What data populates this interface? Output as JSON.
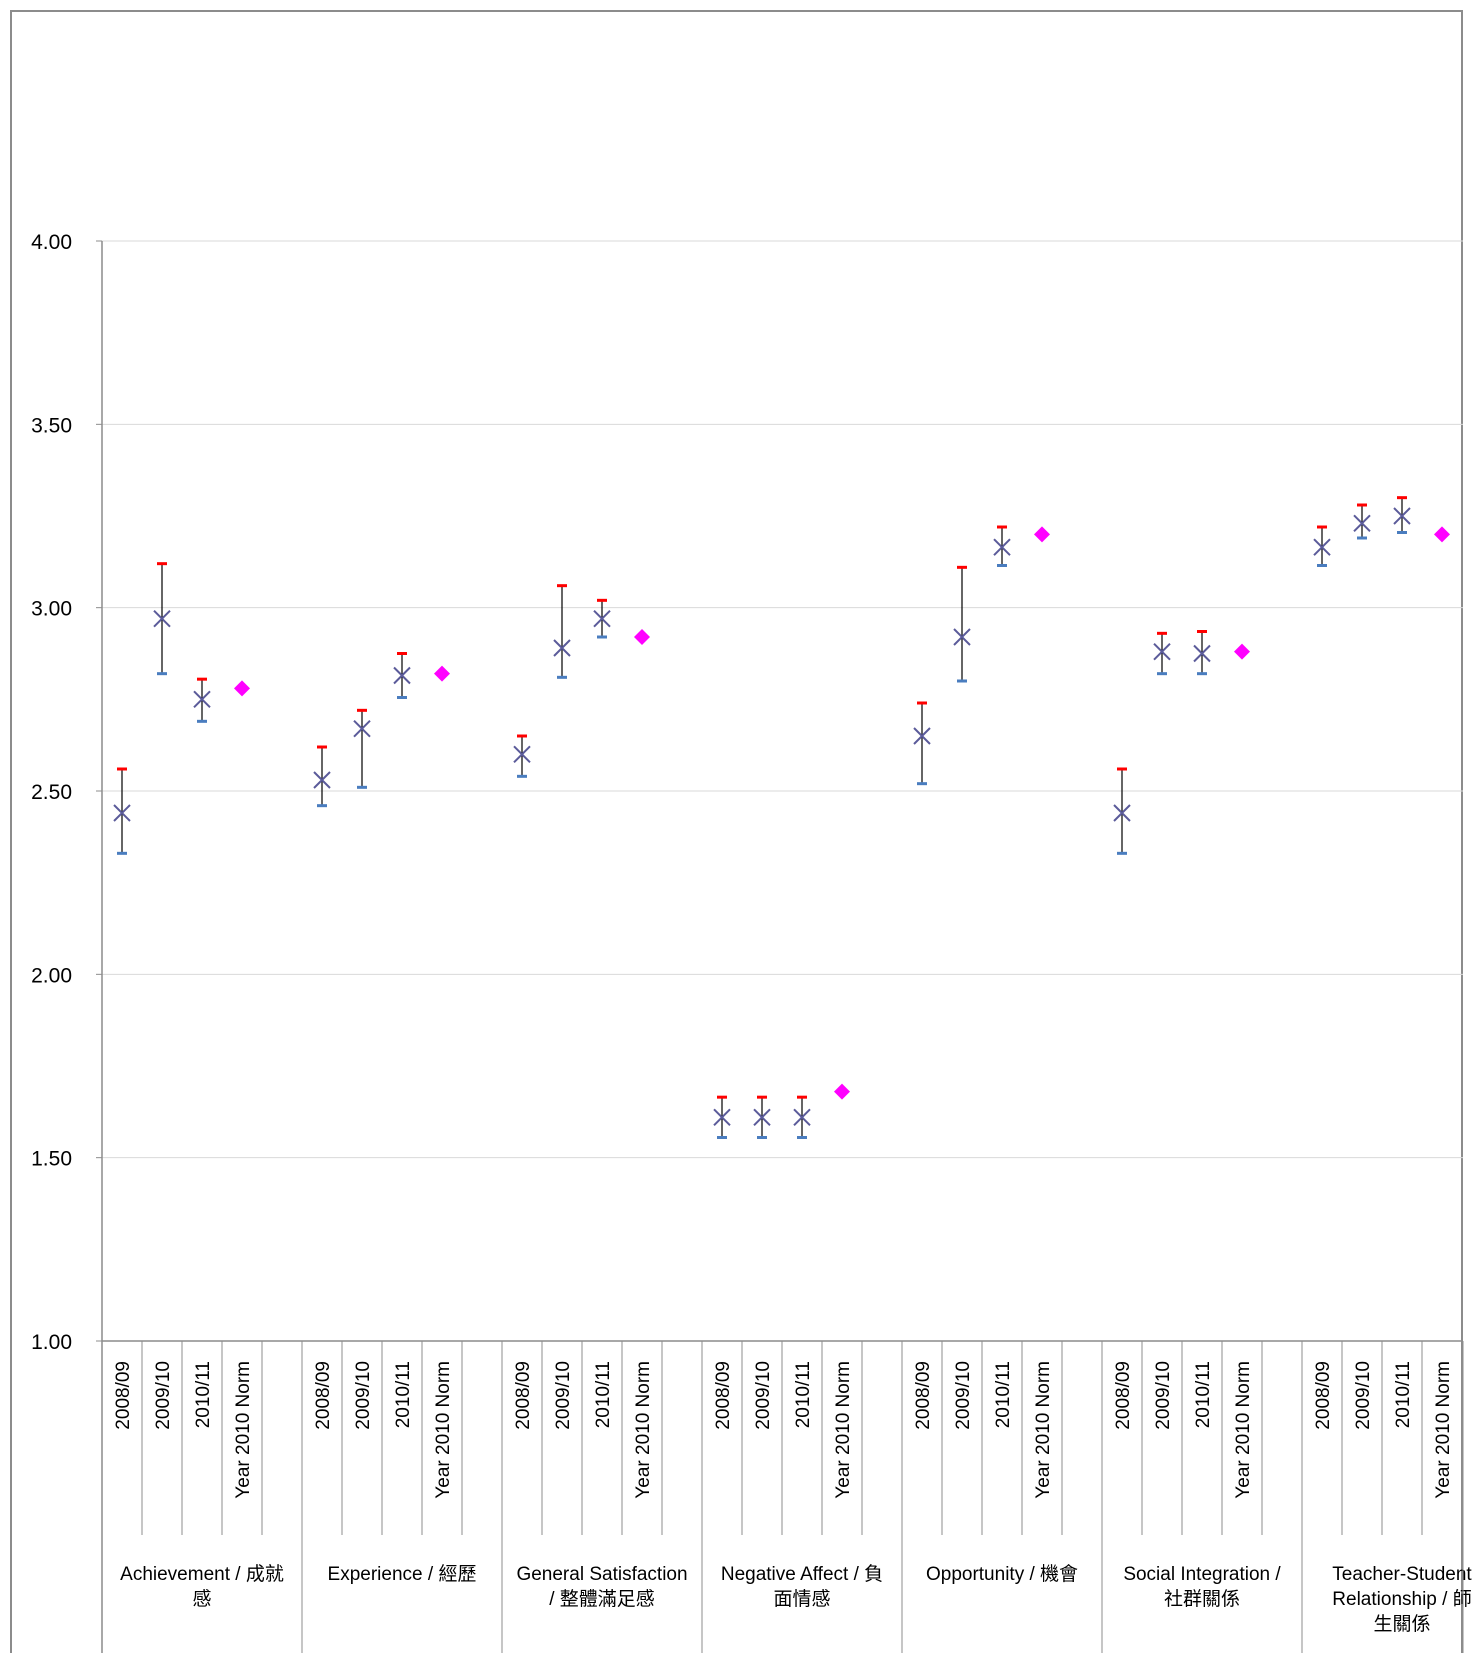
{
  "chart_data": {
    "type": "scatter",
    "title": "",
    "xlabel": "",
    "ylabel": "",
    "ylim": [
      1.0,
      4.0
    ],
    "ytick_labels": [
      "1.00",
      "1.50",
      "2.00",
      "2.50",
      "3.00",
      "3.50",
      "4.00"
    ],
    "grid": true,
    "legend": "none",
    "subcategory_labels": [
      "2008/09",
      "2009/10",
      "2010/11",
      "Year 2010 Norm"
    ],
    "groups": [
      {
        "label_lines": [
          "Achievement / 成就",
          "感"
        ],
        "points": [
          {
            "mean": 2.44,
            "low": 2.33,
            "high": 2.56
          },
          {
            "mean": 2.97,
            "low": 2.82,
            "high": 3.12
          },
          {
            "mean": 2.75,
            "low": 2.69,
            "high": 2.805
          }
        ],
        "norm": 2.78
      },
      {
        "label_lines": [
          "Experience / 經歷"
        ],
        "points": [
          {
            "mean": 2.53,
            "low": 2.46,
            "high": 2.62
          },
          {
            "mean": 2.67,
            "low": 2.51,
            "high": 2.72
          },
          {
            "mean": 2.815,
            "low": 2.755,
            "high": 2.875
          }
        ],
        "norm": 2.82
      },
      {
        "label_lines": [
          "General Satisfaction",
          "/ 整體滿足感"
        ],
        "points": [
          {
            "mean": 2.6,
            "low": 2.54,
            "high": 2.65
          },
          {
            "mean": 2.89,
            "low": 2.81,
            "high": 3.06
          },
          {
            "mean": 2.97,
            "low": 2.92,
            "high": 3.02
          }
        ],
        "norm": 2.92
      },
      {
        "label_lines": [
          "Negative Affect / 負",
          "面情感"
        ],
        "points": [
          {
            "mean": 1.61,
            "low": 1.555,
            "high": 1.665
          },
          {
            "mean": 1.61,
            "low": 1.555,
            "high": 1.665
          },
          {
            "mean": 1.61,
            "low": 1.555,
            "high": 1.665
          }
        ],
        "norm": 1.68
      },
      {
        "label_lines": [
          "Opportunity / 機會"
        ],
        "points": [
          {
            "mean": 2.65,
            "low": 2.52,
            "high": 2.74
          },
          {
            "mean": 2.92,
            "low": 2.8,
            "high": 3.11
          },
          {
            "mean": 3.165,
            "low": 3.115,
            "high": 3.22
          }
        ],
        "norm": 3.2
      },
      {
        "label_lines": [
          "Social Integration /",
          "社群關係"
        ],
        "points": [
          {
            "mean": 2.44,
            "low": 2.33,
            "high": 2.56
          },
          {
            "mean": 2.88,
            "low": 2.82,
            "high": 2.93
          },
          {
            "mean": 2.875,
            "low": 2.82,
            "high": 2.935
          }
        ],
        "norm": 2.88
      },
      {
        "label_lines": [
          "Teacher-Student",
          "Relationship / 師",
          "生關係"
        ],
        "points": [
          {
            "mean": 3.165,
            "low": 3.115,
            "high": 3.22
          },
          {
            "mean": 3.23,
            "low": 3.19,
            "high": 3.28
          },
          {
            "mean": 3.25,
            "low": 3.205,
            "high": 3.3
          }
        ],
        "norm": 3.2
      }
    ],
    "colors": {
      "marker": "#5b5b9a",
      "whisker": "#000000",
      "high_cap": "#ff0000",
      "low_cap": "#4a7dbf",
      "norm_marker": "#ff00ff",
      "grid": "#d9d9d9",
      "axis": "#8c8c8c"
    }
  }
}
